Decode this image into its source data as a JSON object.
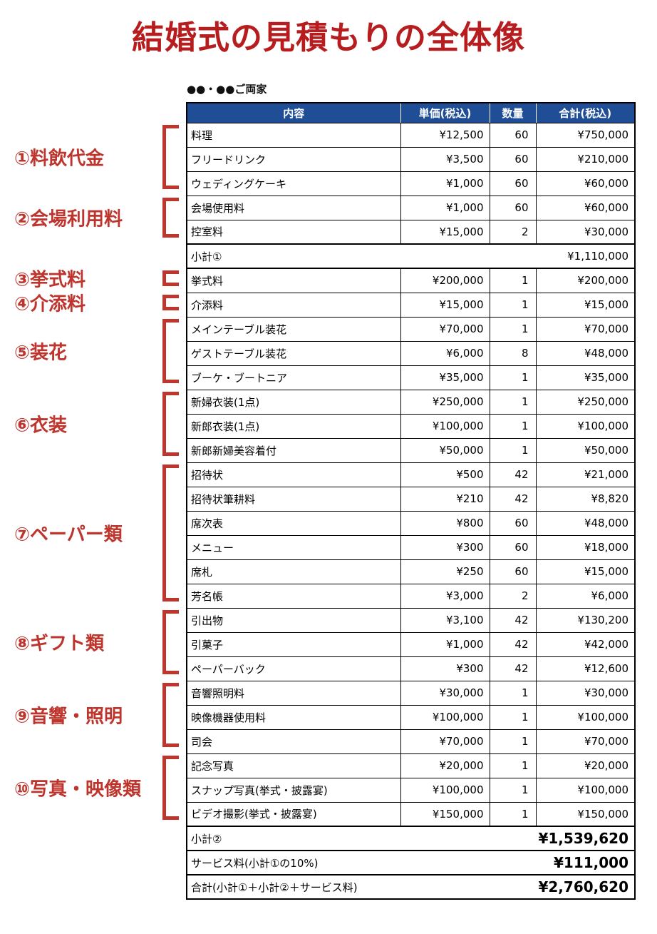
{
  "title": "結婚式の見積もりの全体像",
  "family_line": "●●・●●ご両家",
  "colors": {
    "title_red": "#b71c1e",
    "label_red": "#bd352d",
    "header_blue": "#1f4e96",
    "header_text": "#ffffff",
    "border_black": "#000000"
  },
  "table": {
    "columns": [
      "内容",
      "単価(税込)",
      "数量",
      "合計(税込)"
    ],
    "rows": [
      {
        "kind": "item",
        "label": "料理",
        "unit": "¥12,500",
        "qty": "60",
        "total": "¥750,000"
      },
      {
        "kind": "item",
        "label": "フリードリンク",
        "unit": "¥3,500",
        "qty": "60",
        "total": "¥210,000"
      },
      {
        "kind": "item",
        "label": "ウェディングケーキ",
        "unit": "¥1,000",
        "qty": "60",
        "total": "¥60,000"
      },
      {
        "kind": "item",
        "label": "会場使用料",
        "unit": "¥1,000",
        "qty": "60",
        "total": "¥60,000"
      },
      {
        "kind": "item",
        "label": "控室料",
        "unit": "¥15,000",
        "qty": "2",
        "total": "¥30,000"
      },
      {
        "kind": "subtotal",
        "label": "小計①",
        "total": "¥1,110,000",
        "big": false
      },
      {
        "kind": "item",
        "label": "挙式料",
        "unit": "¥200,000",
        "qty": "1",
        "total": "¥200,000"
      },
      {
        "kind": "item",
        "label": "介添料",
        "unit": "¥15,000",
        "qty": "1",
        "total": "¥15,000"
      },
      {
        "kind": "item",
        "label": "メインテーブル装花",
        "unit": "¥70,000",
        "qty": "1",
        "total": "¥70,000"
      },
      {
        "kind": "item",
        "label": "ゲストテーブル装花",
        "unit": "¥6,000",
        "qty": "8",
        "total": "¥48,000"
      },
      {
        "kind": "item",
        "label": "ブーケ・ブートニア",
        "unit": "¥35,000",
        "qty": "1",
        "total": "¥35,000"
      },
      {
        "kind": "item",
        "label": "新婦衣装(1点)",
        "unit": "¥250,000",
        "qty": "1",
        "total": "¥250,000"
      },
      {
        "kind": "item",
        "label": "新郎衣装(1点)",
        "unit": "¥100,000",
        "qty": "1",
        "total": "¥100,000"
      },
      {
        "kind": "item",
        "label": "新郎新婦美容着付",
        "unit": "¥50,000",
        "qty": "1",
        "total": "¥50,000"
      },
      {
        "kind": "item",
        "label": "招待状",
        "unit": "¥500",
        "qty": "42",
        "total": "¥21,000"
      },
      {
        "kind": "item",
        "label": "招待状筆耕料",
        "unit": "¥210",
        "qty": "42",
        "total": "¥8,820"
      },
      {
        "kind": "item",
        "label": "席次表",
        "unit": "¥800",
        "qty": "60",
        "total": "¥48,000"
      },
      {
        "kind": "item",
        "label": "メニュー",
        "unit": "¥300",
        "qty": "60",
        "total": "¥18,000"
      },
      {
        "kind": "item",
        "label": "席札",
        "unit": "¥250",
        "qty": "60",
        "total": "¥15,000"
      },
      {
        "kind": "item",
        "label": "芳名帳",
        "unit": "¥3,000",
        "qty": "2",
        "total": "¥6,000"
      },
      {
        "kind": "item",
        "label": "引出物",
        "unit": "¥3,100",
        "qty": "42",
        "total": "¥130,200"
      },
      {
        "kind": "item",
        "label": "引菓子",
        "unit": "¥1,000",
        "qty": "42",
        "total": "¥42,000"
      },
      {
        "kind": "item",
        "label": "ペーパーバック",
        "unit": "¥300",
        "qty": "42",
        "total": "¥12,600"
      },
      {
        "kind": "item",
        "label": "音響照明料",
        "unit": "¥30,000",
        "qty": "1",
        "total": "¥30,000"
      },
      {
        "kind": "item",
        "label": "映像機器使用料",
        "unit": "¥100,000",
        "qty": "1",
        "total": "¥100,000"
      },
      {
        "kind": "item",
        "label": "司会",
        "unit": "¥70,000",
        "qty": "1",
        "total": "¥70,000"
      },
      {
        "kind": "item",
        "label": "記念写真",
        "unit": "¥20,000",
        "qty": "1",
        "total": "¥20,000"
      },
      {
        "kind": "item",
        "label": "スナップ写真(挙式・披露宴)",
        "unit": "¥100,000",
        "qty": "1",
        "total": "¥100,000"
      },
      {
        "kind": "item",
        "label": "ビデオ撮影(挙式・披露宴)",
        "unit": "¥150,000",
        "qty": "1",
        "total": "¥150,000"
      },
      {
        "kind": "subtotal",
        "label": "小計②",
        "total": "¥1,539,620",
        "big": true
      },
      {
        "kind": "subtotal",
        "label": "サービス料(小計①の10%)",
        "total": "¥111,000",
        "big": true
      },
      {
        "kind": "subtotal",
        "label": "合計(小計①＋小計②＋サービス料)",
        "total": "¥2,760,620",
        "big": true
      }
    ]
  },
  "groups": [
    {
      "label": "①料飲代金",
      "start": 0,
      "end": 2
    },
    {
      "label": "②会場利用料",
      "start": 3,
      "end": 4
    },
    {
      "label": "③挙式料",
      "start": 6,
      "end": 6
    },
    {
      "label": "④介添料",
      "start": 7,
      "end": 7
    },
    {
      "label": "⑤装花",
      "start": 8,
      "end": 10
    },
    {
      "label": "⑥衣装",
      "start": 11,
      "end": 13
    },
    {
      "label": "⑦ペーパー類",
      "start": 14,
      "end": 19
    },
    {
      "label": "⑧ギフト類",
      "start": 20,
      "end": 22
    },
    {
      "label": "⑨音響・照明",
      "start": 23,
      "end": 25
    },
    {
      "label": "⑩写真・映像類",
      "start": 26,
      "end": 28
    }
  ]
}
